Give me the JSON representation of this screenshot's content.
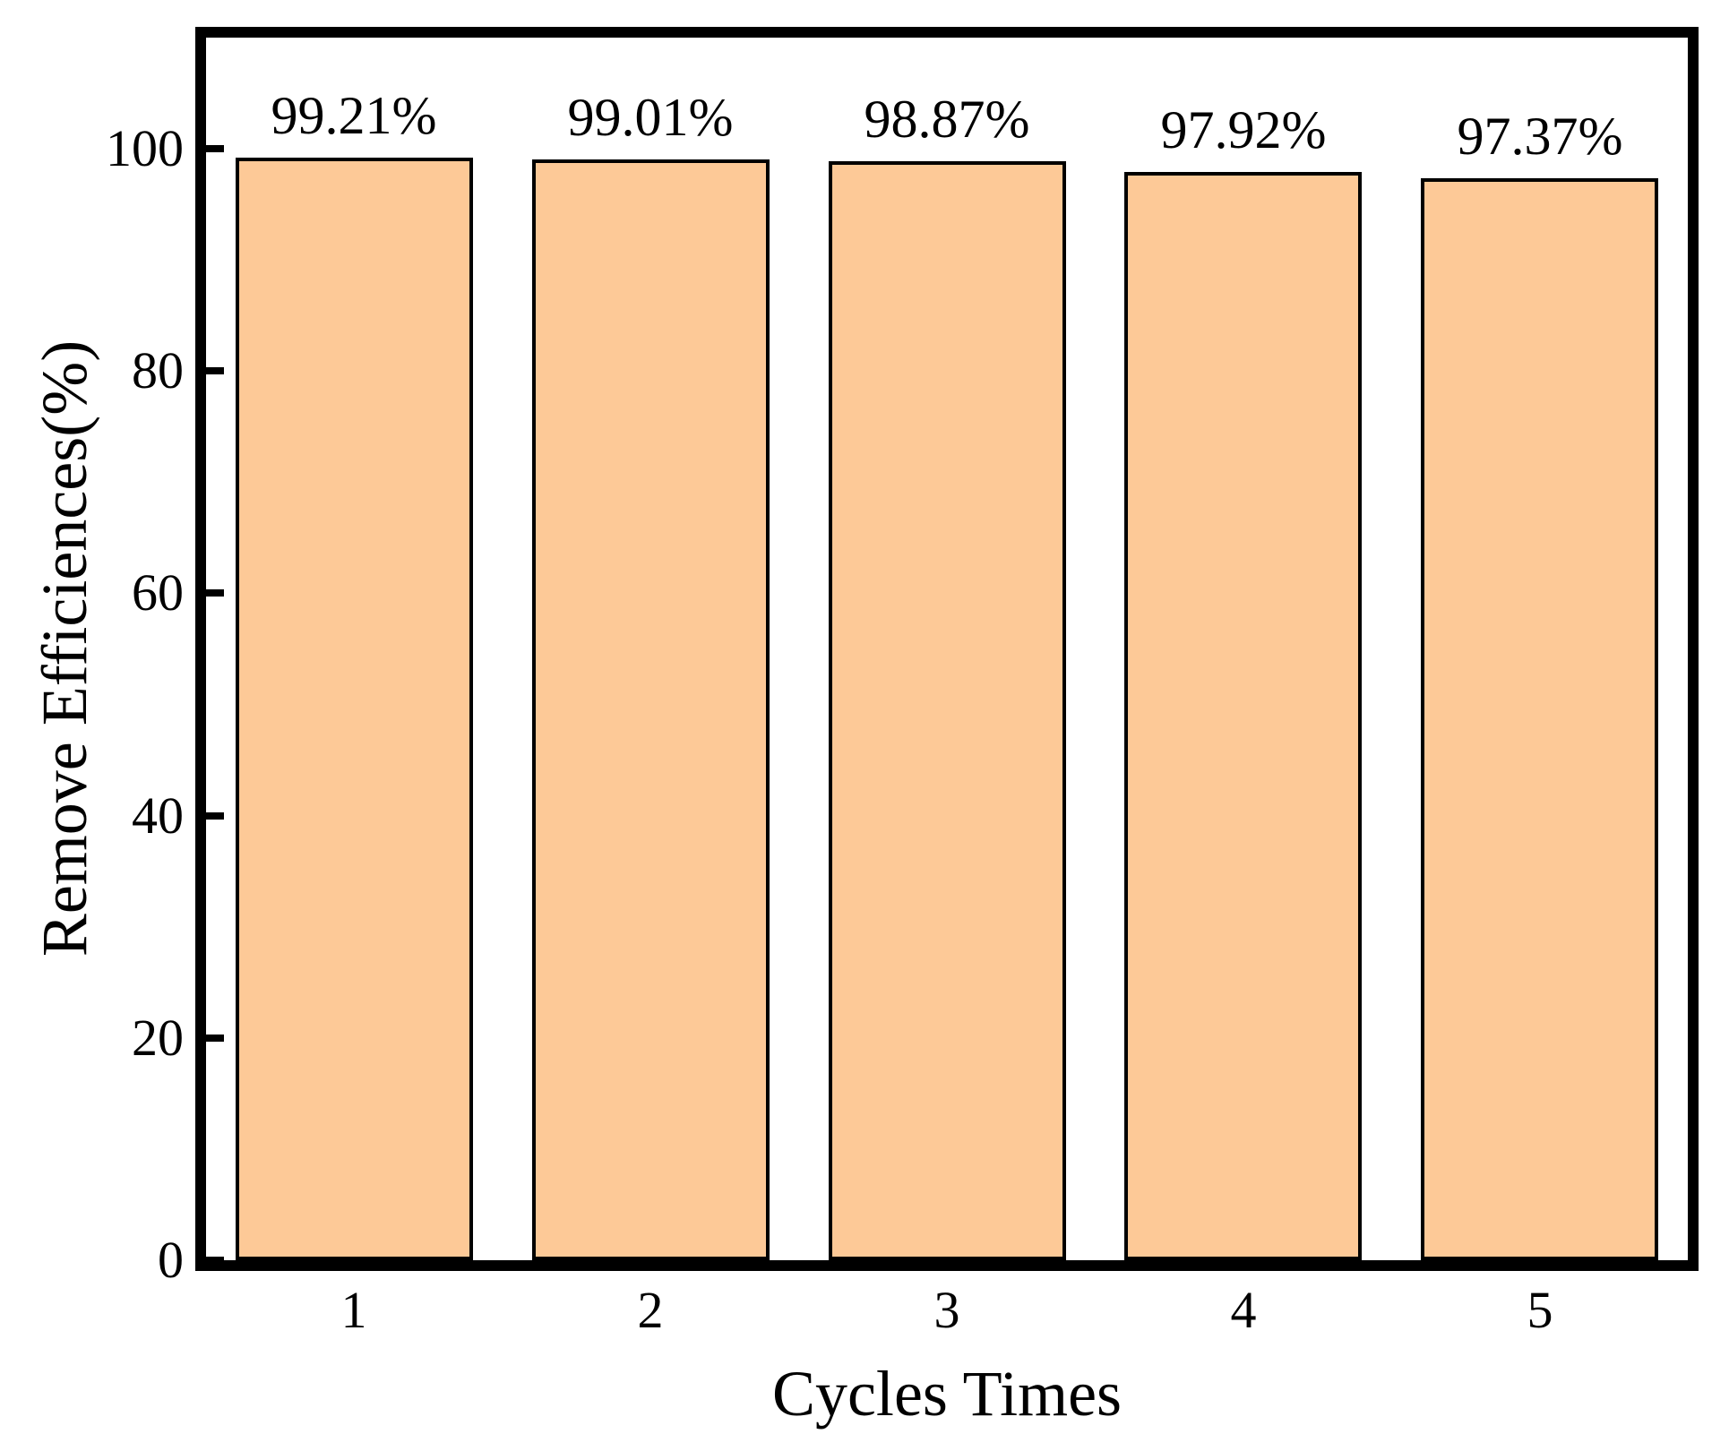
{
  "chart_data": {
    "type": "bar",
    "categories": [
      "1",
      "2",
      "3",
      "4",
      "5"
    ],
    "values": [
      99.21,
      99.01,
      98.87,
      97.92,
      97.37
    ],
    "bar_labels": [
      "99.21%",
      "99.01%",
      "98.87%",
      "97.92%",
      "97.37%"
    ],
    "xlabel": "Cycles Times",
    "ylabel": "Remove Efficiences(%)",
    "yticks": [
      0,
      20,
      40,
      60,
      80,
      100
    ],
    "ylim": [
      0,
      110
    ],
    "bar_width_fraction": 0.8,
    "grid": "off",
    "legend": "none",
    "bar_color": "#FDC997",
    "bar_edge_color": "#000000",
    "axis_color": "#000000",
    "background_color": "#FFFFFF"
  }
}
